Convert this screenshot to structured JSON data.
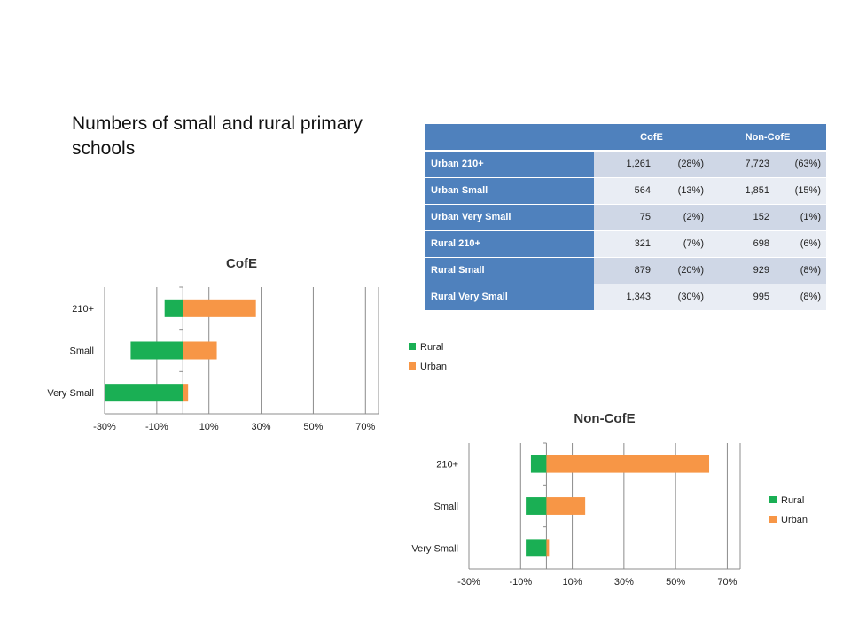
{
  "page": {
    "title": "Numbers of small and rural primary schools"
  },
  "table": {
    "headers": [
      "",
      "CofE",
      "Non-CofE"
    ],
    "rows": [
      {
        "label": "Urban 210+",
        "cofe_n": "1,261",
        "cofe_p": "(28%)",
        "non_n": "7,723",
        "non_p": "(63%)"
      },
      {
        "label": "Urban Small",
        "cofe_n": "564",
        "cofe_p": "(13%)",
        "non_n": "1,851",
        "non_p": "(15%)"
      },
      {
        "label": "Urban Very Small",
        "cofe_n": "75",
        "cofe_p": "(2%)",
        "non_n": "152",
        "non_p": "(1%)"
      },
      {
        "label": "Rural 210+",
        "cofe_n": "321",
        "cofe_p": "(7%)",
        "non_n": "698",
        "non_p": "(6%)"
      },
      {
        "label": "Rural Small",
        "cofe_n": "879",
        "cofe_p": "(20%)",
        "non_n": "929",
        "non_p": "(8%)"
      },
      {
        "label": "Rural Very Small",
        "cofe_n": "1,343",
        "cofe_p": "(30%)",
        "non_n": "995",
        "non_p": "(8%)"
      }
    ]
  },
  "chart_data": [
    {
      "type": "bar",
      "orientation": "horizontal",
      "stacked": true,
      "title": "CofE",
      "categories": [
        "210+",
        "Small",
        "Very Small"
      ],
      "series": [
        {
          "name": "Rural",
          "values": [
            -7,
            -20,
            -30
          ],
          "color": "#1aaf54"
        },
        {
          "name": "Urban",
          "values": [
            28,
            13,
            2
          ],
          "color": "#f79646"
        }
      ],
      "xticks": [
        "-30%",
        "-10%",
        "10%",
        "30%",
        "50%",
        "70%"
      ],
      "xlim": [
        -30,
        75
      ],
      "grid": true,
      "legend": "right"
    },
    {
      "type": "bar",
      "orientation": "horizontal",
      "stacked": true,
      "title": "Non-CofE",
      "categories": [
        "210+",
        "Small",
        "Very Small"
      ],
      "series": [
        {
          "name": "Rural",
          "values": [
            -6,
            -8,
            -8
          ],
          "color": "#1aaf54"
        },
        {
          "name": "Urban",
          "values": [
            63,
            15,
            1
          ],
          "color": "#f79646"
        }
      ],
      "xticks": [
        "-30%",
        "-10%",
        "10%",
        "30%",
        "50%",
        "70%"
      ],
      "xlim": [
        -30,
        75
      ],
      "grid": true,
      "legend": "right"
    }
  ]
}
